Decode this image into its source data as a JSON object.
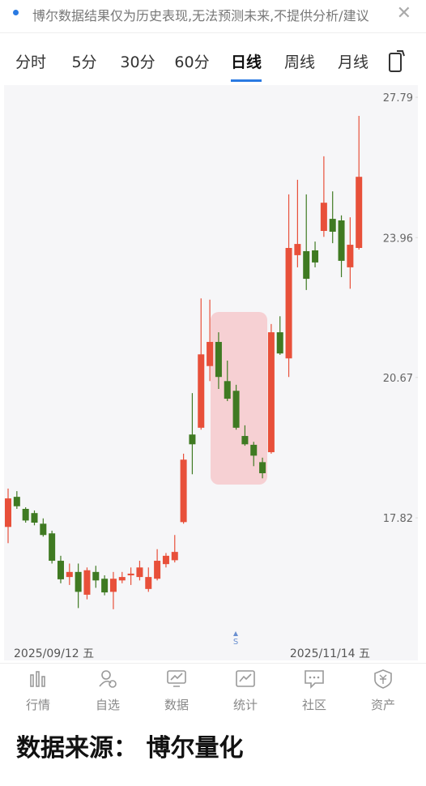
{
  "notice": "博尔数据结果仅为历史表现,无法预测未来,不提供分析/建议",
  "tabs": [
    "分时",
    "5分",
    "30分",
    "60分",
    "日线",
    "周线",
    "月线"
  ],
  "active_tab": 4,
  "chart_data": {
    "type": "candlestick",
    "open": [
      17.65,
      18.22,
      17.99,
      17.91,
      17.71,
      17.53,
      17.03,
      16.74,
      16.83,
      16.43,
      16.83,
      16.71,
      16.48,
      16.68,
      16.77,
      16.74,
      16.53,
      16.71,
      16.97,
      17.04,
      17.74,
      19.46,
      19.6,
      20.92,
      21.46,
      20.59,
      20.38,
      19.43,
      19.25,
      18.9,
      19.1,
      21.68,
      21.09,
      23.52,
      23.62,
      23.64,
      24.13,
      24.44,
      24.4,
      23.22,
      23.7
    ],
    "high": [
      18.38,
      18.33,
      18.02,
      17.96,
      17.81,
      17.58,
      17.12,
      16.98,
      16.98,
      16.91,
      16.94,
      16.77,
      16.83,
      16.83,
      16.91,
      17.03,
      16.91,
      17.24,
      17.17,
      17.5,
      19.07,
      20.33,
      22.47,
      22.44,
      21.68,
      21.04,
      20.51,
      19.65,
      19.31,
      18.99,
      21.87,
      22.05,
      25.08,
      25.47,
      25.08,
      23.86,
      26.11,
      25.16,
      24.53,
      24.48,
      27.25
    ],
    "low": [
      17.35,
      17.99,
      17.73,
      17.68,
      17.47,
      16.98,
      16.63,
      16.6,
      16.2,
      16.35,
      16.55,
      16.42,
      16.18,
      16.63,
      16.6,
      16.68,
      16.48,
      16.68,
      16.91,
      17.0,
      17.71,
      18.66,
      19.56,
      20.59,
      20.42,
      20.16,
      19.56,
      19.23,
      18.82,
      18.58,
      19.07,
      21.17,
      20.68,
      23.22,
      22.67,
      23.22,
      23.98,
      23.82,
      22.98,
      22.7,
      23.66
    ],
    "close": [
      18.19,
      18.04,
      17.77,
      17.73,
      17.5,
      17.03,
      16.7,
      16.83,
      16.48,
      16.86,
      16.68,
      16.47,
      16.71,
      16.74,
      16.8,
      16.91,
      16.74,
      17.03,
      17.12,
      17.19,
      18.95,
      19.26,
      21.18,
      21.46,
      20.68,
      20.21,
      19.6,
      19.26,
      19.03,
      18.68,
      21.68,
      21.2,
      23.7,
      23.8,
      22.94,
      23.34,
      24.86,
      24.11,
      23.38,
      23.78,
      25.55
    ],
    "up_color": "#e8503a",
    "down_color": "#3f7a22",
    "log_scale": true,
    "grid": false,
    "ylim": [
      15.66,
      28.03
    ],
    "yticks": [
      17.82,
      20.67,
      23.96,
      27.79
    ],
    "x_labels": [
      "2025/09/12 五",
      "2025/11/14 五"
    ],
    "marker_label": "S"
  },
  "nav": [
    "行情",
    "自选",
    "数据",
    "统计",
    "社区",
    "资产"
  ],
  "footer": "数据来源： 博尔量化"
}
